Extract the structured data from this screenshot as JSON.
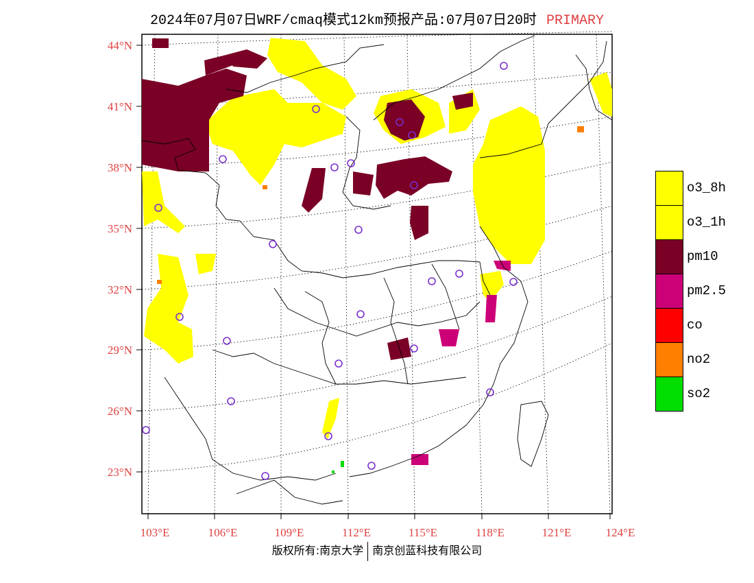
{
  "header": {
    "title": "2024年07月07日WRF/cmaq模式12km预报产品:07月07日20时",
    "tag": "PRIMARY"
  },
  "map": {
    "lat_labels": [
      "44°N",
      "41°N",
      "38°N",
      "35°N",
      "32°N",
      "29°N",
      "26°N",
      "23°N"
    ],
    "lon_labels": [
      "103°E",
      "106°E",
      "109°E",
      "112°E",
      "115°E",
      "118°E",
      "121°E",
      "124°E"
    ],
    "colors": {
      "o3_8h": "#ffff00",
      "o3_1h": "#ffff00",
      "pm10": "#7a0026",
      "pm25": "#cc0077",
      "co": "#ff0000",
      "no2": "#ff7f00",
      "so2": "#00dd00",
      "station": "#7a2fd0"
    }
  },
  "legend": [
    {
      "label": "o3_8h",
      "color": "#ffff00"
    },
    {
      "label": "o3_1h",
      "color": "#ffff00"
    },
    {
      "label": "pm10",
      "color": "#7a0026"
    },
    {
      "label": "pm2.5",
      "color": "#cc0077"
    },
    {
      "label": "co",
      "color": "#ff0000"
    },
    {
      "label": "no2",
      "color": "#ff7f00"
    },
    {
      "label": "so2",
      "color": "#00dd00"
    }
  ],
  "footer": {
    "left": "版权所有:南京大学",
    "right": "南京创蓝科技有限公司"
  }
}
